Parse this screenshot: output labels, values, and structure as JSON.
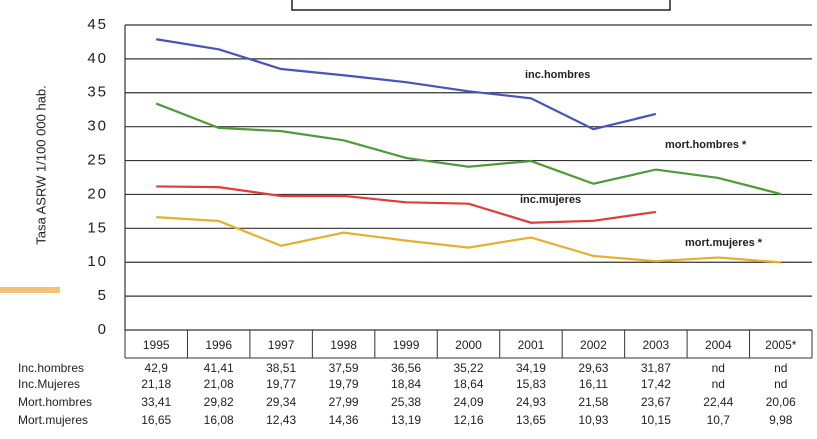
{
  "chart_data": {
    "type": "line",
    "ylabel": "Tasa ASRW 1/100 000 hab.",
    "categories": [
      "1995",
      "1996",
      "1997",
      "1998",
      "1999",
      "2000",
      "2001",
      "2002",
      "2003",
      "2004",
      "2005*"
    ],
    "ylim": [
      0,
      45
    ],
    "yticks": [
      0,
      5,
      10,
      15,
      20,
      25,
      30,
      35,
      40,
      45
    ],
    "grid": true,
    "series": [
      {
        "name": "inc.hombres",
        "row_label": "Inc.hombres",
        "color": "#4a52b8",
        "values": [
          42.9,
          41.41,
          38.51,
          37.59,
          36.56,
          35.22,
          34.19,
          29.63,
          31.87,
          null,
          null
        ],
        "value_labels": [
          "42,9",
          "41,41",
          "38,51",
          "37,59",
          "36,56",
          "35,22",
          "34,19",
          "29,63",
          "31,87",
          "nd",
          "nd"
        ]
      },
      {
        "name": "inc.mujeres",
        "row_label": "Inc.Mujeres",
        "color": "#de3d3d",
        "values": [
          21.18,
          21.08,
          19.77,
          19.79,
          18.84,
          18.64,
          15.83,
          16.11,
          17.42,
          null,
          null
        ],
        "value_labels": [
          "21,18",
          "21,08",
          "19,77",
          "19,79",
          "18,84",
          "18,64",
          "15,83",
          "16,11",
          "17,42",
          "nd",
          "nd"
        ]
      },
      {
        "name": "mort.hombres *",
        "row_label": "Mort.hombres",
        "color": "#4f9a3b",
        "values": [
          33.41,
          29.82,
          29.34,
          27.99,
          25.38,
          24.09,
          24.93,
          21.58,
          23.67,
          22.44,
          20.06
        ],
        "value_labels": [
          "33,41",
          "29,82",
          "29,34",
          "27,99",
          "25,38",
          "24,09",
          "24,93",
          "21,58",
          "23,67",
          "22,44",
          "20,06"
        ]
      },
      {
        "name": "mort.mujeres *",
        "row_label": "Mort.mujeres",
        "color": "#e6b02e",
        "values": [
          16.65,
          16.08,
          12.43,
          14.36,
          13.19,
          12.16,
          13.65,
          10.93,
          10.15,
          10.7,
          9.98
        ],
        "value_labels": [
          "16,65",
          "16,08",
          "12,43",
          "14,36",
          "13,19",
          "12,16",
          "13,65",
          "10,93",
          "10,15",
          "10,7",
          "9,98"
        ]
      }
    ]
  }
}
